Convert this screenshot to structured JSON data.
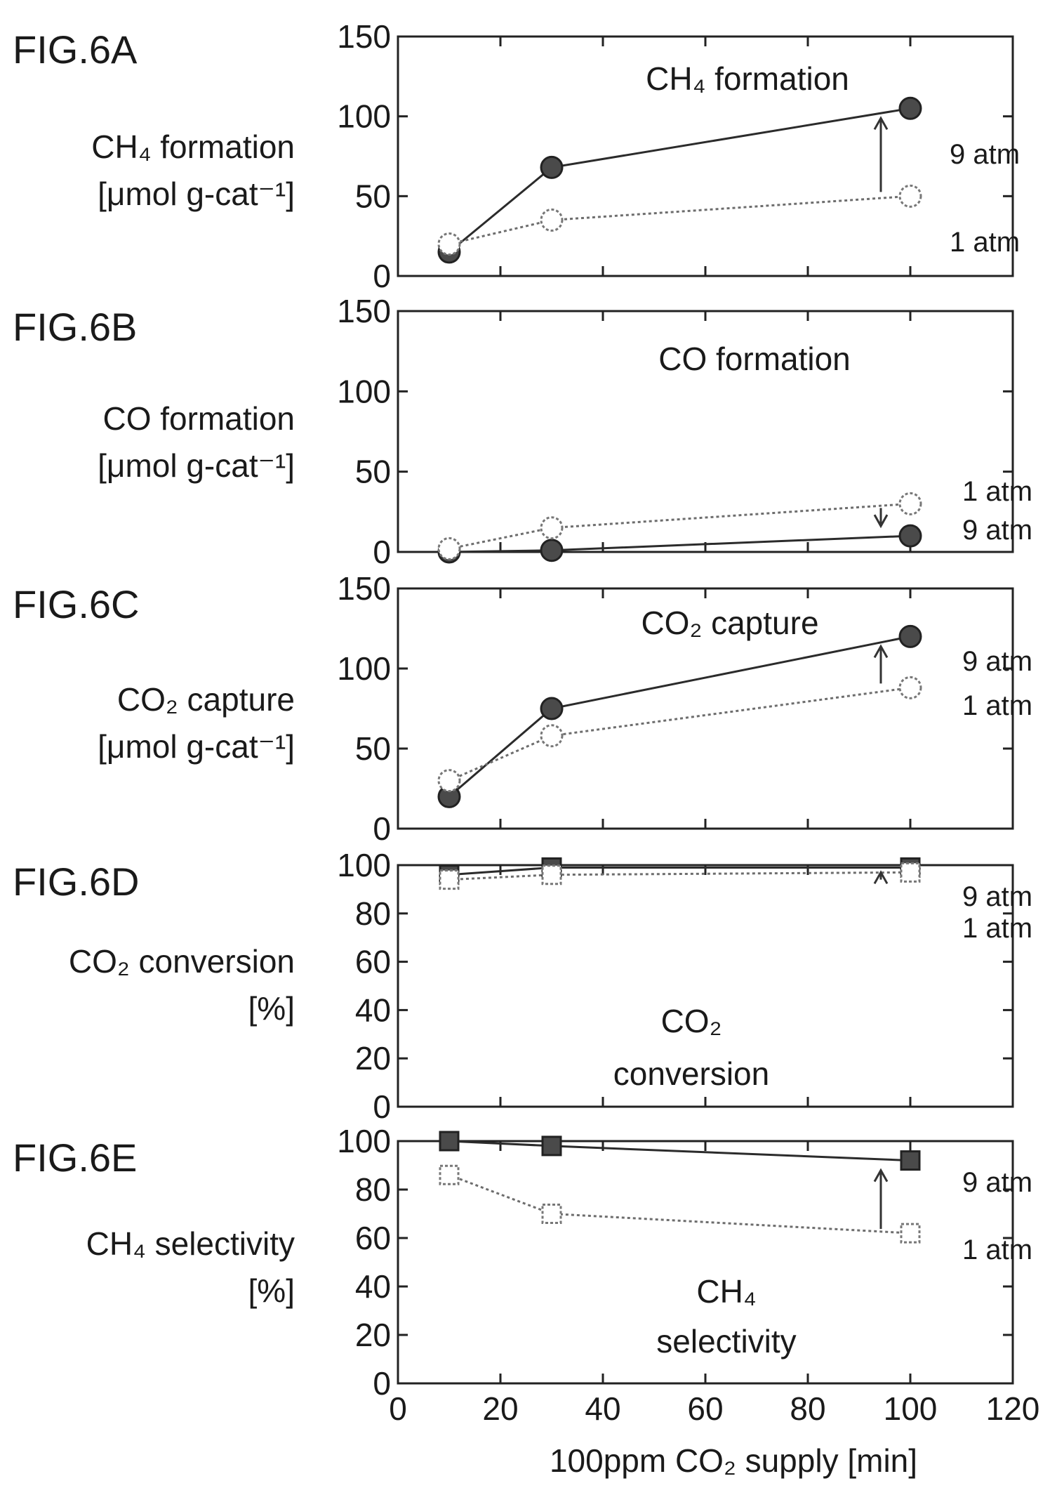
{
  "chart_data": [
    {
      "type": "line",
      "figure_label": "FIG.6A",
      "ylabel": [
        "CH₄ formation",
        "[μmol g-cat⁻¹]"
      ],
      "title": "CH₄ formation",
      "ylim": [
        0,
        150
      ],
      "yticks": [
        0,
        50,
        100,
        150
      ],
      "marker": "circle",
      "arrow": "up",
      "series": [
        {
          "name": "9 atm",
          "style": "solid-filled",
          "x": [
            10,
            30,
            100
          ],
          "values": [
            15,
            68,
            105
          ]
        },
        {
          "name": "1 atm",
          "style": "dotted-open",
          "x": [
            10,
            30,
            100
          ],
          "values": [
            20,
            35,
            50
          ]
        }
      ],
      "label_order": [
        "9 atm",
        "1 atm"
      ]
    },
    {
      "type": "line",
      "figure_label": "FIG.6B",
      "ylabel": [
        "CO formation",
        "[μmol g-cat⁻¹]"
      ],
      "title": "CO formation",
      "ylim": [
        0,
        150
      ],
      "yticks": [
        0,
        50,
        100,
        150
      ],
      "marker": "circle",
      "arrow": "down",
      "series": [
        {
          "name": "9 atm",
          "style": "solid-filled",
          "x": [
            10,
            30,
            100
          ],
          "values": [
            0,
            1,
            10
          ]
        },
        {
          "name": "1 atm",
          "style": "dotted-open",
          "x": [
            10,
            30,
            100
          ],
          "values": [
            2,
            15,
            30
          ]
        }
      ],
      "label_order": [
        "1 atm",
        "9 atm"
      ]
    },
    {
      "type": "line",
      "figure_label": "FIG.6C",
      "ylabel": [
        "CO₂ capture",
        "[μmol g-cat⁻¹]"
      ],
      "title": "CO₂ capture",
      "ylim": [
        0,
        150
      ],
      "yticks": [
        0,
        50,
        100,
        150
      ],
      "marker": "circle",
      "arrow": "up",
      "series": [
        {
          "name": "9 atm",
          "style": "solid-filled",
          "x": [
            10,
            30,
            100
          ],
          "values": [
            20,
            75,
            120
          ]
        },
        {
          "name": "1 atm",
          "style": "dotted-open",
          "x": [
            10,
            30,
            100
          ],
          "values": [
            30,
            58,
            88
          ]
        }
      ],
      "label_order": [
        "9 atm",
        "1 atm"
      ]
    },
    {
      "type": "line",
      "figure_label": "FIG.6D",
      "ylabel": [
        "CO₂ conversion",
        "[%]"
      ],
      "title": [
        "CO₂",
        "conversion"
      ],
      "ylim": [
        0,
        100
      ],
      "yticks": [
        0,
        20,
        40,
        60,
        80,
        100
      ],
      "marker": "square",
      "arrow": "up",
      "series": [
        {
          "name": "9 atm",
          "style": "solid-filled",
          "x": [
            10,
            30,
            100
          ],
          "values": [
            96,
            99,
            99
          ]
        },
        {
          "name": "1 atm",
          "style": "dotted-open",
          "x": [
            10,
            30,
            100
          ],
          "values": [
            94,
            96,
            97
          ]
        }
      ],
      "label_order": [
        "9 atm",
        "1 atm"
      ]
    },
    {
      "type": "line",
      "figure_label": "FIG.6E",
      "ylabel": [
        "CH₄ selectivity",
        "[%]"
      ],
      "title": [
        "CH₄",
        "selectivity"
      ],
      "ylim": [
        0,
        100
      ],
      "yticks": [
        0,
        20,
        40,
        60,
        80,
        100
      ],
      "marker": "square",
      "arrow": "up",
      "series": [
        {
          "name": "9 atm",
          "style": "solid-filled",
          "x": [
            10,
            30,
            100
          ],
          "values": [
            100,
            98,
            92
          ]
        },
        {
          "name": "1 atm",
          "style": "dotted-open",
          "x": [
            10,
            30,
            100
          ],
          "values": [
            86,
            70,
            62
          ]
        }
      ],
      "label_order": [
        "9 atm",
        "1 atm"
      ],
      "xlabel": "100ppm CO₂ supply [min]",
      "xlim": [
        0,
        120
      ],
      "xticks": [
        0,
        20,
        40,
        60,
        80,
        100,
        120
      ]
    }
  ]
}
